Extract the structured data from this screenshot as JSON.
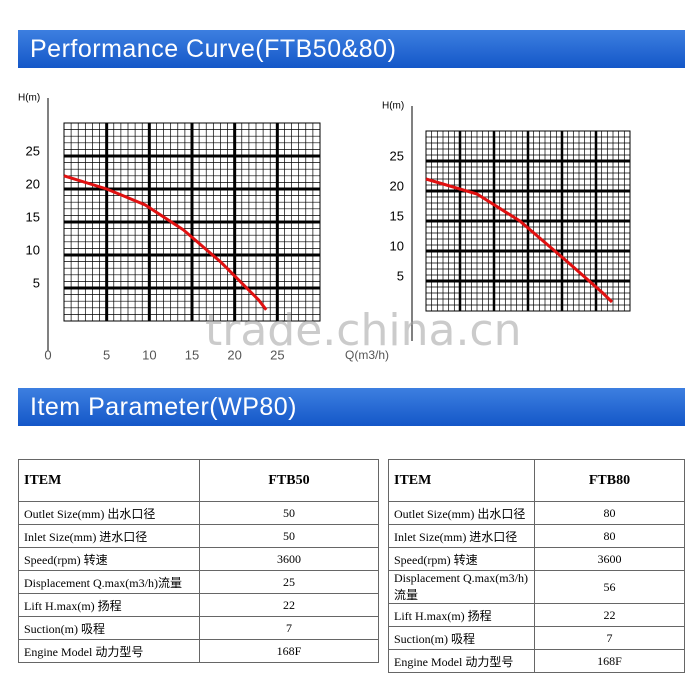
{
  "header": {
    "title": "Performance Curve(FTB50&80)"
  },
  "chart_data": [
    {
      "type": "line",
      "ylabel": "H(m)",
      "xlabel": "Q(m3/h)",
      "xlim": [
        0,
        30
      ],
      "ylim": [
        0,
        30
      ],
      "xticks": [
        0,
        5,
        10,
        15,
        20,
        25
      ],
      "yticks": [
        5,
        10,
        15,
        20,
        25
      ],
      "grid": true,
      "x": [
        0,
        5,
        9.5,
        14,
        18.4,
        22.8,
        23.7
      ],
      "series": [
        {
          "name": "FTB50",
          "color": "#e01010",
          "values": [
            22,
            20,
            17.6,
            13.8,
            8.9,
            3.2,
            1.7
          ]
        }
      ]
    },
    {
      "type": "line",
      "ylabel": "H(m)",
      "xlim": [
        0,
        60
      ],
      "ylim": [
        0,
        30
      ],
      "yticks": [
        5,
        10,
        15,
        20,
        25
      ],
      "grid": true,
      "x": [
        0,
        15,
        27.6,
        42,
        52,
        54.7
      ],
      "series": [
        {
          "name": "FTB80",
          "color": "#e01010",
          "values": [
            22,
            19.5,
            15,
            8,
            3,
            1.5
          ]
        }
      ]
    }
  ],
  "watermark": "trade.china.cn",
  "section": {
    "title": "Item Parameter(WP80)"
  },
  "tables": [
    {
      "rows": [
        [
          "ITEM",
          "FTB50"
        ],
        [
          "Outlet Size(mm) 出水口径",
          "50"
        ],
        [
          "Inlet Size(mm) 进水口径",
          "50"
        ],
        [
          "Speed(rpm) 转速",
          "3600"
        ],
        [
          "Displacement Q.max(m3/h)流量",
          "25"
        ],
        [
          "Lift H.max(m) 扬程",
          "22"
        ],
        [
          "Suction(m) 吸程",
          "7"
        ],
        [
          "Engine Model 动力型号",
          "168F"
        ]
      ]
    },
    {
      "rows": [
        [
          "ITEM",
          "FTB80"
        ],
        [
          "Outlet Size(mm) 出水口径",
          "80"
        ],
        [
          "Inlet Size(mm) 进水口径",
          "80"
        ],
        [
          "Speed(rpm) 转速",
          "3600"
        ],
        [
          "Displacement Q.max(m3/h)流量",
          "56"
        ],
        [
          "Lift H.max(m) 扬程",
          "22"
        ],
        [
          "Suction(m) 吸程",
          "7"
        ],
        [
          "Engine Model 动力型号",
          "168F"
        ]
      ]
    }
  ]
}
